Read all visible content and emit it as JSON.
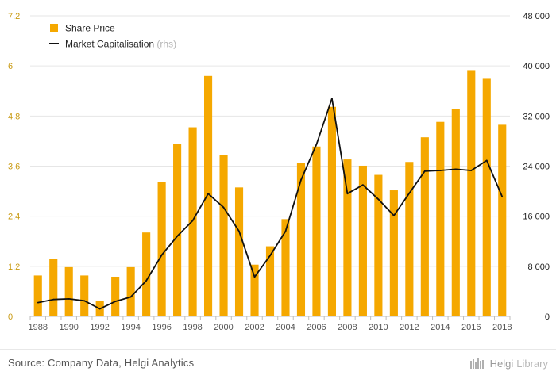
{
  "chart_data": {
    "type": "bar",
    "title": "",
    "categories": [
      "1988",
      "1989",
      "1990",
      "1991",
      "1992",
      "1993",
      "1994",
      "1995",
      "1996",
      "1997",
      "1998",
      "1999",
      "2000",
      "2001",
      "2002",
      "2003",
      "2004",
      "2005",
      "2006",
      "2007",
      "2008",
      "2009",
      "2010",
      "2011",
      "2012",
      "2013",
      "2014",
      "2015",
      "2016",
      "2017",
      "2018"
    ],
    "x_tick_labels": [
      "1988",
      "1990",
      "1992",
      "1994",
      "1996",
      "1998",
      "2000",
      "2002",
      "2004",
      "2006",
      "2008",
      "2010",
      "2012",
      "2014",
      "2016",
      "2018"
    ],
    "series": [
      {
        "name": "Share Price",
        "type": "bar",
        "axis": "left",
        "color": "#F5A800",
        "values": [
          0.98,
          1.38,
          1.18,
          0.98,
          0.38,
          0.95,
          1.18,
          2.01,
          3.22,
          4.13,
          4.53,
          5.76,
          3.86,
          3.09,
          1.24,
          1.68,
          2.33,
          3.68,
          4.07,
          5.02,
          3.76,
          3.61,
          3.39,
          3.02,
          3.7,
          4.29,
          4.66,
          4.96,
          5.9,
          5.71,
          4.59
        ]
      },
      {
        "name": "Market Capitalisation",
        "name_suffix": "(rhs)",
        "type": "line",
        "axis": "right",
        "color": "#111111",
        "values": [
          2200,
          2700,
          2800,
          2500,
          1200,
          2400,
          3100,
          5700,
          9800,
          12800,
          15300,
          19600,
          17400,
          13600,
          6300,
          9700,
          13600,
          21800,
          27500,
          34800,
          19600,
          21000,
          18700,
          16100,
          19700,
          23200,
          23300,
          23500,
          23300,
          24900,
          19100
        ]
      }
    ],
    "ylim": [
      0,
      7.2
    ],
    "y_ticks": [
      "0",
      "1.2",
      "2.4",
      "3.6",
      "4.8",
      "6",
      "7.2"
    ],
    "y2lim": [
      0,
      48000
    ],
    "y2_ticks": [
      "0",
      "8 000",
      "16 000",
      "24 000",
      "32 000",
      "40 000",
      "48 000"
    ],
    "xlabel": "",
    "ylabel": "",
    "grid": true,
    "legend_position": "top-left"
  },
  "footer": {
    "source": "Source: Company Data, Helgi Analytics",
    "brand_helgi": "Helgi",
    "brand_library": "Library"
  },
  "colors": {
    "bar": "#F5A800",
    "line": "#111111",
    "left_axis_text": "#C99A12",
    "grid": "#E6E6E6"
  }
}
